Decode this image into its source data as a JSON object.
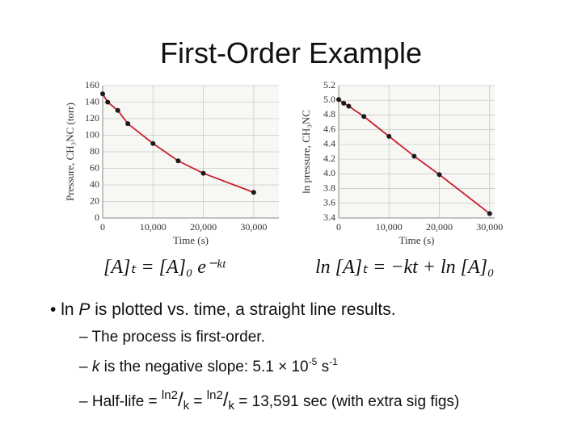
{
  "slide": {
    "title": "First-Order Example",
    "equation_left": "[A]ₜ = [A]₀ e⁻ᵏᵗ",
    "equation_right": "ln [A]ₜ = −kt + ln [A]₀",
    "bullet": [
      "ln ",
      "P",
      " is plotted vs. time, a straight line results."
    ],
    "sub_bullets": [
      [
        "The process is first-order."
      ],
      [
        "k",
        " is the negative slope:  5.1 × 10",
        "-5",
        " s",
        "-1"
      ],
      [
        "Half-life = ",
        "ln2",
        "/",
        "k",
        " = ",
        "ln2",
        "/",
        "k",
        " = 13,591 sec (with extra sig figs)"
      ]
    ]
  },
  "chart_data": [
    {
      "type": "line",
      "x_label": "Time (s)",
      "y_label": "Pressure, CH₃NC (torr)",
      "x": [
        0,
        1000,
        3000,
        5000,
        10000,
        15000,
        20000,
        30000
      ],
      "values": [
        150,
        140,
        130,
        114,
        90,
        69,
        54,
        31
      ],
      "color": "#1a1a1a",
      "line_color": "#c8202f",
      "xlim": [
        0,
        35000
      ],
      "xticks": [
        0,
        {
          "value": 10000,
          "label": "10,000"
        },
        {
          "value": 20000,
          "label": "20,000"
        },
        {
          "value": 30000,
          "label": "30,000"
        }
      ],
      "ylim": [
        0,
        160
      ],
      "yticks": [
        0,
        20,
        40,
        60,
        80,
        100,
        120,
        140,
        160
      ],
      "grid": true
    },
    {
      "type": "line",
      "x_label": "Time (s)",
      "y_label": "ln pressure, CH₃NC",
      "x": [
        0,
        1000,
        2000,
        5000,
        10000,
        15000,
        20000,
        30000
      ],
      "values": [
        5.01,
        4.96,
        4.92,
        4.78,
        4.51,
        4.24,
        3.99,
        3.46
      ],
      "color": "#1a1a1a",
      "line_color": "#c8202f",
      "xlim": [
        0,
        31000
      ],
      "xticks": [
        0,
        {
          "value": 10000,
          "label": "10,000"
        },
        {
          "value": 20000,
          "label": "20,000"
        },
        {
          "value": 30000,
          "label": "30,000"
        }
      ],
      "ylim": [
        3.4,
        5.2
      ],
      "yticks": [
        3.4,
        3.6,
        3.8,
        {
          "value": 4,
          "label": "4.0"
        },
        4.2,
        4.4,
        4.6,
        4.8,
        {
          "value": 5,
          "label": "5.0"
        },
        5.2
      ],
      "grid": true
    }
  ]
}
